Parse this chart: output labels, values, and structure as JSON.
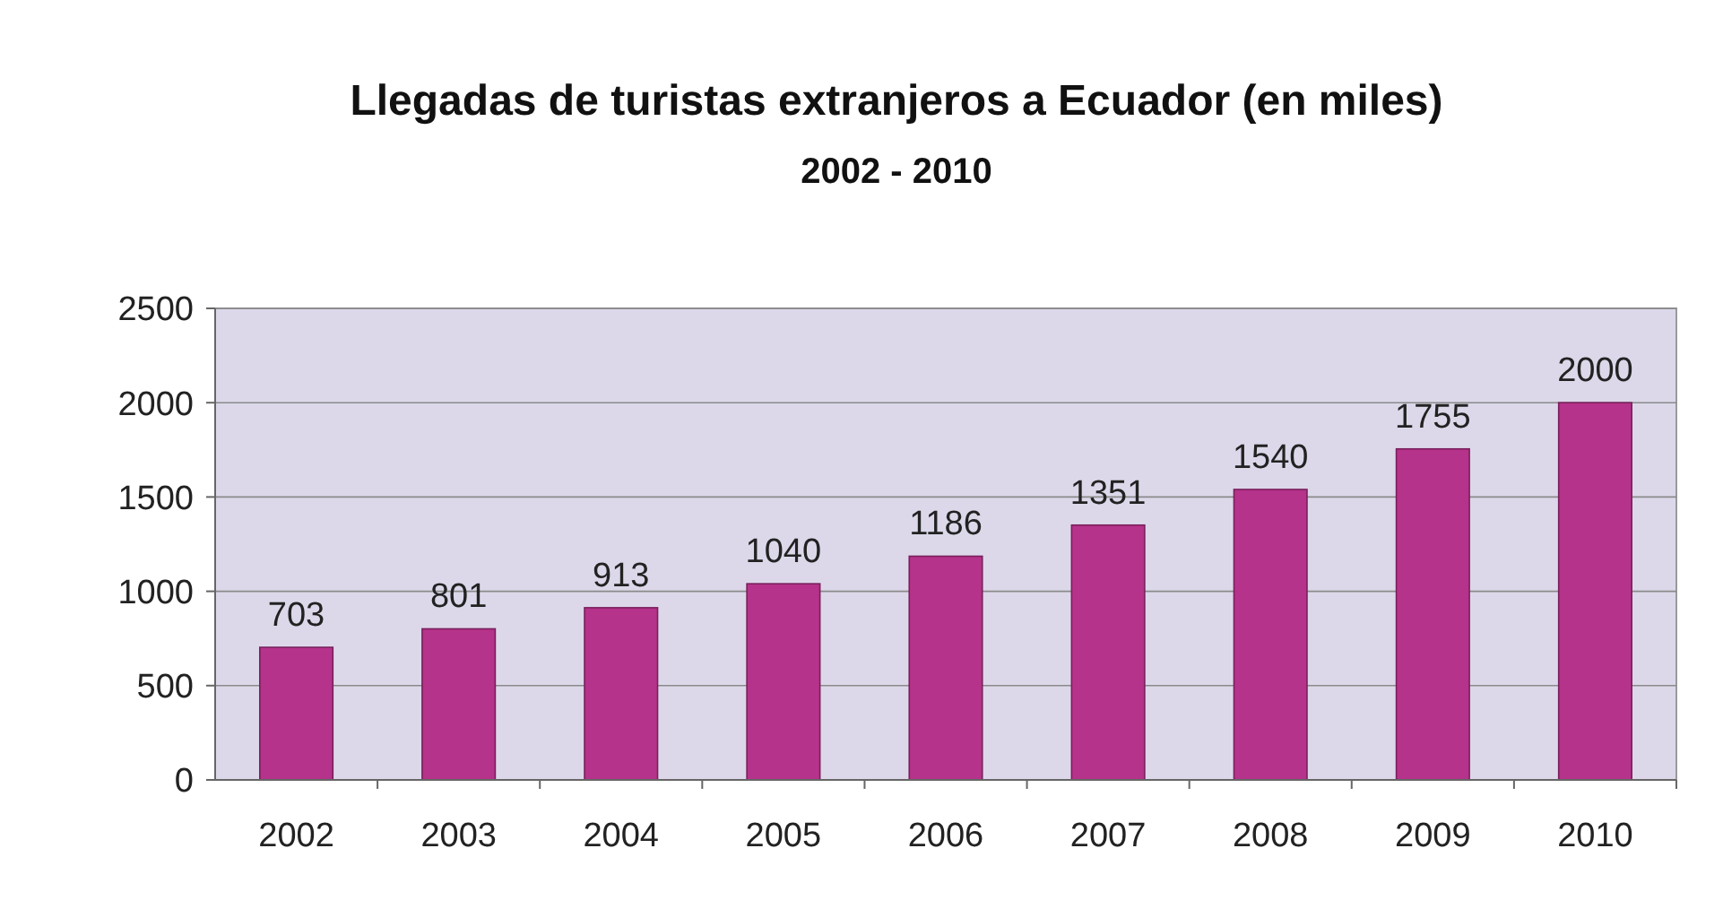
{
  "chart_data": {
    "type": "bar",
    "title": "Llegadas de turistas extranjeros a Ecuador (en miles)",
    "subtitle": "2002 - 2010",
    "categories": [
      "2002",
      "2003",
      "2004",
      "2005",
      "2006",
      "2007",
      "2008",
      "2009",
      "2010"
    ],
    "values": [
      703,
      801,
      913,
      1040,
      1186,
      1351,
      1540,
      1755,
      2000
    ],
    "color": "#b5338a",
    "ylim": [
      0,
      2500
    ],
    "yticks": [
      0,
      500,
      1000,
      1500,
      2000,
      2500
    ],
    "grid": "y",
    "data_labels": true
  }
}
